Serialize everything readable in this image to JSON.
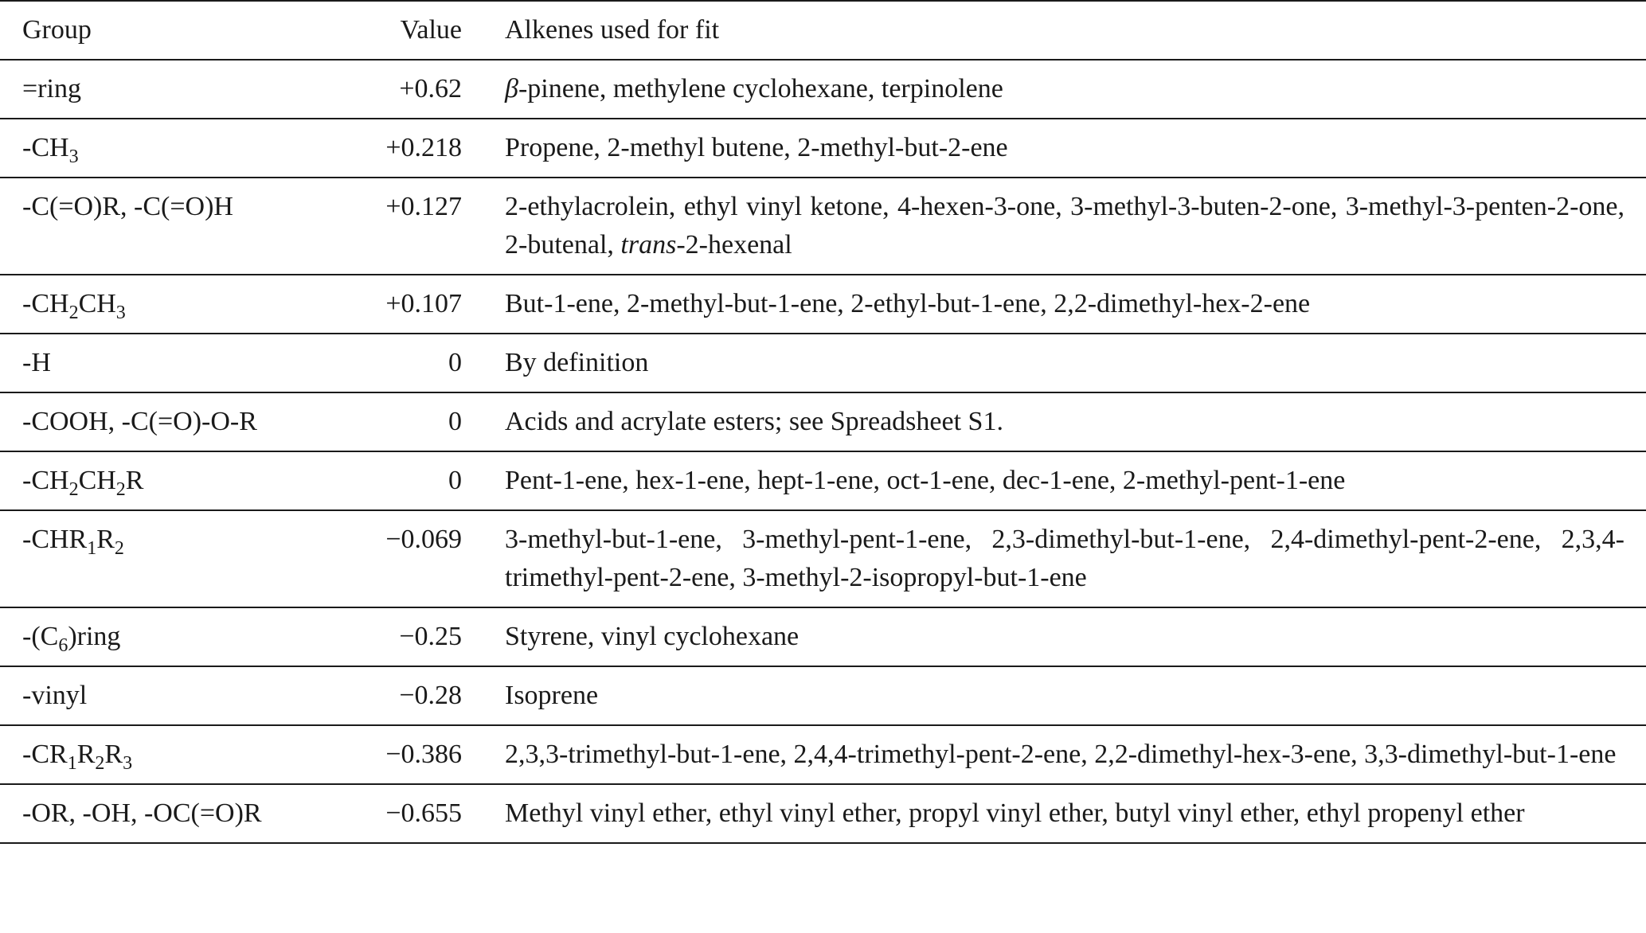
{
  "table": {
    "headers": {
      "group": "Group",
      "value": "Value",
      "alkenes": "Alkenes used for fit"
    },
    "rows": [
      {
        "group": {
          "pre": "=ring",
          "s1": "",
          "m1": "",
          "s2": "",
          "m2": "",
          "s3": "",
          "post": ""
        },
        "value": "+0.62",
        "alkenes": {
          "it1": "β",
          "t1": "-pinene, methylene cyclohexane, terpinolene",
          "it2": "",
          "t2": ""
        }
      },
      {
        "group": {
          "pre": "-CH",
          "s1": "3",
          "m1": "",
          "s2": "",
          "m2": "",
          "s3": "",
          "post": ""
        },
        "value": "+0.218",
        "alkenes": {
          "it1": "",
          "t1": "Propene, 2-methyl butene, 2-methyl-but-2-ene",
          "it2": "",
          "t2": ""
        }
      },
      {
        "group": {
          "pre": "-C(=O)R, -C(=O)H",
          "s1": "",
          "m1": "",
          "s2": "",
          "m2": "",
          "s3": "",
          "post": ""
        },
        "value": "+0.127",
        "alkenes": {
          "it1": "",
          "t1": "2-ethylacrolein, ethyl vinyl ketone, 4-hexen-3-one, 3-methyl-3-buten-2-one, 3-methyl-3-penten-2-one, 2-butenal, ",
          "it2": "trans",
          "t2": "-2-hexenal"
        }
      },
      {
        "group": {
          "pre": "-CH",
          "s1": "2",
          "m1": "CH",
          "s2": "3",
          "m2": "",
          "s3": "",
          "post": ""
        },
        "value": "+0.107",
        "alkenes": {
          "it1": "",
          "t1": "But-1-ene, 2-methyl-but-1-ene, 2-ethyl-but-1-ene, 2,2-dimethyl-hex-2-ene",
          "it2": "",
          "t2": ""
        }
      },
      {
        "group": {
          "pre": "-H",
          "s1": "",
          "m1": "",
          "s2": "",
          "m2": "",
          "s3": "",
          "post": ""
        },
        "value": "0",
        "alkenes": {
          "it1": "",
          "t1": "By definition",
          "it2": "",
          "t2": ""
        }
      },
      {
        "group": {
          "pre": "-COOH, -C(=O)-O-R",
          "s1": "",
          "m1": "",
          "s2": "",
          "m2": "",
          "s3": "",
          "post": ""
        },
        "value": "0",
        "alkenes": {
          "it1": "",
          "t1": "Acids and acrylate esters; see Spreadsheet S1.",
          "it2": "",
          "t2": ""
        }
      },
      {
        "group": {
          "pre": "-CH",
          "s1": "2",
          "m1": "CH",
          "s2": "2",
          "m2": "R",
          "s3": "",
          "post": ""
        },
        "value": "0",
        "alkenes": {
          "it1": "",
          "t1": "Pent-1-ene, hex-1-ene, hept-1-ene, oct-1-ene, dec-1-ene, 2-methyl-pent-1-ene",
          "it2": "",
          "t2": ""
        }
      },
      {
        "group": {
          "pre": "-CHR",
          "s1": "1",
          "m1": "R",
          "s2": "2",
          "m2": "",
          "s3": "",
          "post": ""
        },
        "value": "−0.069",
        "alkenes": {
          "it1": "",
          "t1": "3-methyl-but-1-ene, 3-methyl-pent-1-ene, 2,3-dimethyl-but-1-ene, 2,4-dimethyl-pent-2-ene, 2,3,4-trimethyl-pent-2-ene, 3-methyl-2-isopropyl-but-1-ene",
          "it2": "",
          "t2": ""
        }
      },
      {
        "group": {
          "pre": "-(C",
          "s1": "6",
          "m1": ")ring",
          "s2": "",
          "m2": "",
          "s3": "",
          "post": ""
        },
        "value": "−0.25",
        "alkenes": {
          "it1": "",
          "t1": "Styrene, vinyl cyclohexane",
          "it2": "",
          "t2": ""
        }
      },
      {
        "group": {
          "pre": "-vinyl",
          "s1": "",
          "m1": "",
          "s2": "",
          "m2": "",
          "s3": "",
          "post": ""
        },
        "value": "−0.28",
        "alkenes": {
          "it1": "",
          "t1": "Isoprene",
          "it2": "",
          "t2": ""
        }
      },
      {
        "group": {
          "pre": "-CR",
          "s1": "1",
          "m1": "R",
          "s2": "2",
          "m2": "R",
          "s3": "3",
          "post": ""
        },
        "value": "−0.386",
        "alkenes": {
          "it1": "",
          "t1": "2,3,3-trimethyl-but-1-ene, 2,4,4-trimethyl-pent-2-ene, 2,2-dimethyl-hex-3-ene, 3,3-dimethyl-but-1-ene",
          "it2": "",
          "t2": ""
        }
      },
      {
        "group": {
          "pre": "-OR, -OH, -OC(=O)R",
          "s1": "",
          "m1": "",
          "s2": "",
          "m2": "",
          "s3": "",
          "post": ""
        },
        "value": "−0.655",
        "alkenes": {
          "it1": "",
          "t1": "Methyl vinyl ether, ethyl vinyl ether, propyl vinyl ether, butyl vinyl ether, ethyl propenyl ether",
          "it2": "",
          "t2": ""
        }
      }
    ]
  }
}
